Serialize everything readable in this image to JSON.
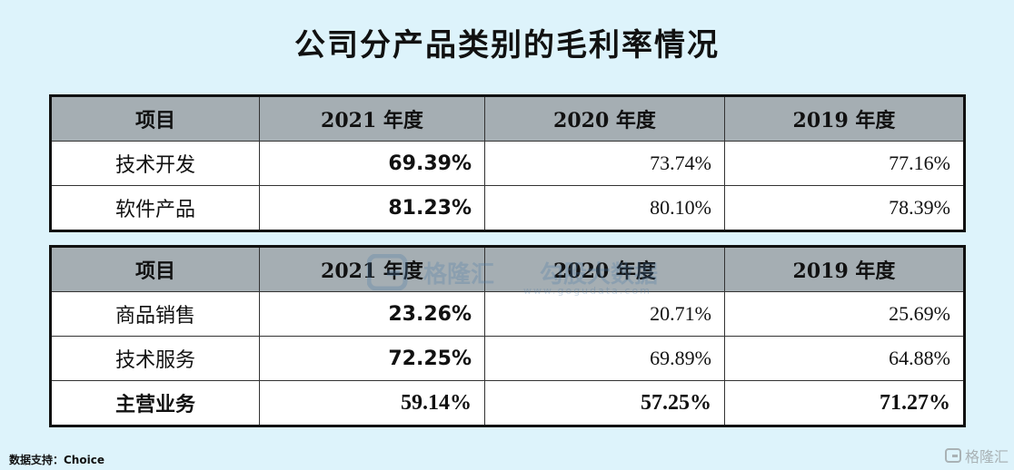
{
  "title": "公司分产品类别的毛利率情况",
  "table1": {
    "headers": [
      "项目",
      "2021 年度",
      "2020 年度",
      "2019 年度"
    ],
    "rows": [
      {
        "label": "技术开发",
        "y2021": "69.39%",
        "y2020": "73.74%",
        "y2019": "77.16%"
      },
      {
        "label": "软件产品",
        "y2021": "81.23%",
        "y2020": "80.10%",
        "y2019": "78.39%"
      }
    ]
  },
  "table2": {
    "headers": [
      "项目",
      "2021 年度",
      "2020 年度",
      "2019 年度"
    ],
    "rows": [
      {
        "label": "商品销售",
        "y2021": "23.26%",
        "y2020": "20.71%",
        "y2019": "25.69%"
      },
      {
        "label": "技术服务",
        "y2021": "72.25%",
        "y2020": "69.89%",
        "y2019": "64.88%"
      },
      {
        "label": "主营业务",
        "y2021": "59.14%",
        "y2020": "57.25%",
        "y2019": "71.27%"
      }
    ]
  },
  "source": "数据支持：Choice",
  "watermark": {
    "text": "格隆汇",
    "text2": "勾股大数据",
    "url": "www.gogudata.com"
  },
  "corner_logo": {
    "text": "格隆汇"
  }
}
